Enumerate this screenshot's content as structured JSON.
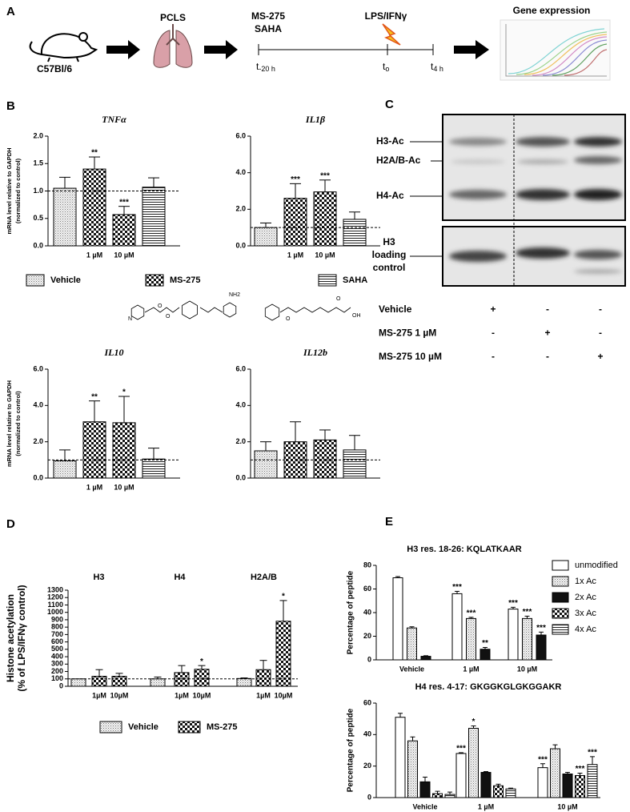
{
  "panel_labels": [
    "A",
    "B",
    "C",
    "D",
    "E"
  ],
  "panel_a": {
    "mouse": "C57Bl/6",
    "slices": "PCLS",
    "drugs": [
      "MS-275",
      "SAHA"
    ],
    "stimulus": "LPS/IFNγ",
    "readout": "Gene expression",
    "timepoints": [
      {
        "main": "t",
        "sub": "-20 h"
      },
      {
        "main": "t",
        "sub": "o"
      },
      {
        "main": "t",
        "sub": "4 h"
      }
    ]
  },
  "panel_b_structures": {
    "ms_275": [
      "N",
      "O",
      "O",
      "NH2"
    ],
    "saha": [
      "O",
      "O",
      "OH"
    ]
  },
  "panel_c": {
    "bands": [
      "H3-Ac",
      "H2A/B-Ac",
      "H4-Ac"
    ],
    "loading_control": [
      "H3",
      "loading",
      "control"
    ],
    "conditions": [
      {
        "name": "Vehicle",
        "lanes": [
          "+",
          "-",
          "-"
        ]
      },
      {
        "name": "MS-275 1 µM",
        "lanes": [
          "-",
          "+",
          "-"
        ]
      },
      {
        "name": "MS-275 10 µM",
        "lanes": [
          "-",
          "-",
          "+"
        ]
      }
    ]
  },
  "legends": {
    "b": [
      {
        "name": "Vehicle",
        "fill": "dotted"
      },
      {
        "name": "MS-275",
        "fill": "checkered"
      },
      {
        "name": "SAHA",
        "fill": "horizontal-lines"
      }
    ],
    "d": [
      {
        "name": "Vehicle",
        "fill": "dotted"
      },
      {
        "name": "MS-275",
        "fill": "checkered"
      }
    ],
    "e": [
      {
        "name": "unmodified",
        "fill": "white"
      },
      {
        "name": "1x Ac",
        "fill": "dotted"
      },
      {
        "name": "2x Ac",
        "fill": "black"
      },
      {
        "name": "3x Ac",
        "fill": "checkered"
      },
      {
        "name": "4x Ac",
        "fill": "horizontal-lines"
      }
    ]
  },
  "chart_data": [
    {
      "type": "bar",
      "title": "TNFα",
      "y_label": [
        "mRNA level relative to GAPDH",
        "(normalized to control)"
      ],
      "categories": [
        null,
        "1 µM",
        "10 µM",
        null
      ],
      "series": [
        {
          "fill": "dotted",
          "values": [
            1.05,
            null,
            null,
            null
          ],
          "errors": [
            0.2,
            null,
            null,
            null
          ]
        },
        {
          "fill": "checkered",
          "values": [
            null,
            1.4,
            0.57,
            null
          ],
          "errors": [
            null,
            0.22,
            0.15,
            null
          ],
          "annotations": [
            null,
            "**",
            "***",
            null
          ]
        },
        {
          "fill": "horizontal-lines",
          "values": [
            null,
            null,
            null,
            1.07
          ],
          "errors": [
            null,
            null,
            null,
            0.17
          ]
        }
      ],
      "ylim": [
        0,
        2
      ],
      "yticks": [
        {
          "value": 0,
          "label": "0.0"
        },
        0.5,
        {
          "value": 1,
          "label": "1.0"
        },
        1.5,
        {
          "value": 2,
          "label": "2.0"
        }
      ],
      "reference_line": 1
    },
    {
      "type": "bar",
      "title": "IL1β",
      "categories": [
        null,
        "1 µM",
        "10 µM",
        null
      ],
      "series": [
        {
          "fill": "dotted",
          "values": [
            1.0,
            null,
            null,
            null
          ],
          "errors": [
            0.25,
            null,
            null,
            null
          ]
        },
        {
          "fill": "checkered",
          "values": [
            null,
            2.6,
            2.95,
            null
          ],
          "errors": [
            null,
            0.8,
            0.65,
            null
          ],
          "annotations": [
            null,
            "***",
            "***",
            null
          ]
        },
        {
          "fill": "horizontal-lines",
          "values": [
            null,
            null,
            null,
            1.45
          ],
          "errors": [
            null,
            null,
            null,
            0.4
          ]
        }
      ],
      "ylim": [
        0,
        6
      ],
      "yticks": [
        {
          "value": 0,
          "label": "0.0"
        },
        {
          "value": 2,
          "label": "2.0"
        },
        {
          "value": 4,
          "label": "4.0"
        },
        {
          "value": 6,
          "label": "6.0"
        }
      ],
      "reference_line": 1
    },
    {
      "type": "bar",
      "title": "IL10",
      "y_label": [
        "mRNA level relative to GAPDH",
        "(normalized to control)"
      ],
      "categories": [
        null,
        "1 µM",
        "10 µM",
        null
      ],
      "series": [
        {
          "fill": "dotted",
          "values": [
            0.95,
            null,
            null,
            null
          ],
          "errors": [
            0.6,
            null,
            null,
            null
          ]
        },
        {
          "fill": "checkered",
          "values": [
            null,
            3.1,
            3.05,
            null
          ],
          "errors": [
            null,
            1.15,
            1.45,
            null
          ],
          "annotations": [
            null,
            "**",
            "*",
            null
          ]
        },
        {
          "fill": "horizontal-lines",
          "values": [
            null,
            null,
            null,
            1.05
          ],
          "errors": [
            null,
            null,
            null,
            0.6
          ]
        }
      ],
      "ylim": [
        0,
        6
      ],
      "yticks": [
        {
          "value": 0,
          "label": "0.0"
        },
        {
          "value": 2,
          "label": "2.0"
        },
        {
          "value": 4,
          "label": "4.0"
        },
        {
          "value": 6,
          "label": "6.0"
        }
      ],
      "reference_line": 1
    },
    {
      "type": "bar",
      "title": "IL12b",
      "categories": [
        null,
        null,
        null,
        null
      ],
      "series": [
        {
          "fill": "dotted",
          "values": [
            1.5,
            null,
            null,
            null
          ],
          "errors": [
            0.5,
            null,
            null,
            null
          ]
        },
        {
          "fill": "checkered",
          "values": [
            null,
            2.0,
            2.1,
            null
          ],
          "errors": [
            null,
            1.1,
            0.55,
            null
          ]
        },
        {
          "fill": "horizontal-lines",
          "values": [
            null,
            null,
            null,
            1.55
          ],
          "errors": [
            null,
            null,
            null,
            0.8
          ]
        }
      ],
      "ylim": [
        0,
        6
      ],
      "yticks": [
        {
          "value": 0,
          "label": "0.0"
        },
        {
          "value": 2,
          "label": "2.0"
        },
        {
          "value": 4,
          "label": "4.0"
        },
        {
          "value": 6,
          "label": "6.0"
        }
      ],
      "reference_line": 1
    },
    {
      "type": "bar",
      "y_label": [
        "Histone acetylation",
        "(% of LPS/IFNγ control)"
      ],
      "groups": [
        "H3",
        "H4",
        "H2A/B"
      ],
      "categories": [
        null,
        "1µM",
        "10µM",
        null,
        "1µM",
        "10µM",
        null,
        "1µM",
        "10µM"
      ],
      "series": [
        {
          "fill": "dotted",
          "values": [
            100,
            null,
            null,
            100,
            null,
            null,
            105,
            null,
            null
          ],
          "errors": [
            null,
            null,
            null,
            25,
            null,
            null,
            8,
            null,
            null
          ]
        },
        {
          "fill": "checkered",
          "values": [
            null,
            135,
            135,
            null,
            185,
            230,
            null,
            225,
            880
          ],
          "errors": [
            null,
            90,
            40,
            null,
            95,
            50,
            null,
            125,
            280
          ],
          "annotations": [
            null,
            null,
            null,
            null,
            null,
            "*",
            null,
            null,
            "*"
          ]
        }
      ],
      "ylim": [
        0,
        1300
      ],
      "yticks": [
        0,
        100,
        200,
        300,
        400,
        500,
        600,
        700,
        800,
        900,
        1000,
        1100,
        1200,
        1300
      ],
      "reference_line": 100
    },
    {
      "type": "grouped_bar",
      "title": "H3 res. 18-26: KQLATKAAR",
      "y_label": "Percentage of peptide",
      "categories": [
        "Vehicle",
        "1 µM",
        "10 µM"
      ],
      "series": [
        {
          "fill": "white",
          "values": [
            69.5,
            56,
            43
          ],
          "errors": [
            1,
            2,
            1.5
          ],
          "annotations": [
            null,
            "***",
            "***"
          ]
        },
        {
          "fill": "dotted",
          "values": [
            27,
            35,
            35
          ],
          "errors": [
            1,
            1,
            2
          ],
          "annotations": [
            null,
            "***",
            "***"
          ]
        },
        {
          "fill": "black",
          "values": [
            3,
            9,
            21
          ],
          "errors": [
            0.5,
            1.5,
            2.5
          ],
          "annotations": [
            null,
            "**",
            "***"
          ]
        }
      ],
      "ylim": [
        0,
        80
      ],
      "yticks": [
        0,
        20,
        40,
        60,
        80
      ]
    },
    {
      "type": "grouped_bar",
      "title": "H4 res. 4-17: GKGGKGLGKGGAKR",
      "y_label": "Percentage of peptide",
      "categories": [
        "Vehicle",
        "1 µM",
        "10 µM"
      ],
      "series": [
        {
          "fill": "white",
          "values": [
            51,
            28,
            19
          ],
          "errors": [
            2.5,
            0.5,
            2.5
          ],
          "annotations": [
            null,
            "***",
            "***"
          ]
        },
        {
          "fill": "dotted",
          "values": [
            36,
            44,
            31
          ],
          "errors": [
            2.5,
            1.5,
            2.5
          ],
          "annotations": [
            null,
            "*",
            null
          ]
        },
        {
          "fill": "black",
          "values": [
            10,
            16,
            15
          ],
          "errors": [
            3,
            0.5,
            1
          ]
        },
        {
          "fill": "checkered",
          "values": [
            2.5,
            7.5,
            14
          ],
          "errors": [
            1.5,
            1,
            1.5
          ],
          "annotations": [
            null,
            null,
            "***"
          ]
        },
        {
          "fill": "horizontal-lines",
          "values": [
            2,
            5.5,
            21
          ],
          "errors": [
            1.5,
            0.5,
            5
          ],
          "annotations": [
            null,
            null,
            "***"
          ]
        }
      ],
      "ylim": [
        0,
        60
      ],
      "yticks": [
        0,
        20,
        40,
        60
      ]
    }
  ]
}
